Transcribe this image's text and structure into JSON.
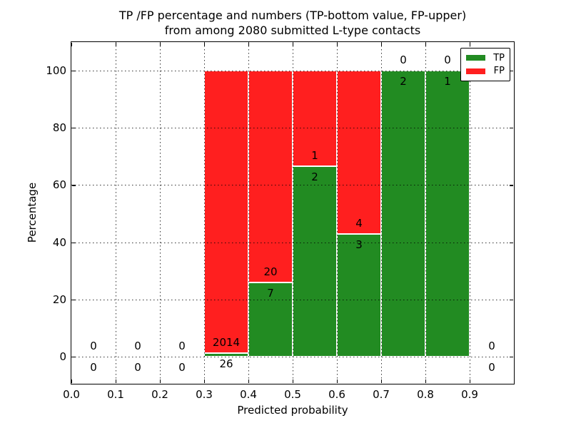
{
  "title": {
    "line1": "TP /FP percentage and numbers (TP-bottom value, FP-upper)",
    "line2": "from among 2080 submitted L-type contacts"
  },
  "axes": {
    "xlabel": "Predicted probability",
    "ylabel": "Percentage",
    "x_tick_labels": [
      "0.0",
      "0.1",
      "0.2",
      "0.3",
      "0.4",
      "0.5",
      "0.6",
      "0.7",
      "0.8",
      "0.9"
    ],
    "y_tick_labels": [
      "0",
      "20",
      "40",
      "60",
      "80",
      "100"
    ]
  },
  "legend": {
    "items": [
      {
        "label": "TP",
        "color": "#228b22"
      },
      {
        "label": "FP",
        "color": "#ff1f1f"
      }
    ]
  },
  "chart_data": {
    "type": "bar",
    "stacked": true,
    "percent_stacked": true,
    "title": "TP /FP percentage and numbers (TP-bottom value, FP-upper) from among 2080 submitted L-type contacts",
    "xlabel": "Predicted probability",
    "ylabel": "Percentage",
    "total_contacts": 2080,
    "bin_width": 0.1,
    "bin_starts": [
      0.0,
      0.1,
      0.2,
      0.3,
      0.4,
      0.5,
      0.6,
      0.7,
      0.8,
      0.9
    ],
    "series": [
      {
        "name": "TP",
        "color": "#228b22",
        "counts": [
          0,
          0,
          0,
          26,
          7,
          2,
          3,
          2,
          1,
          0
        ]
      },
      {
        "name": "FP",
        "color": "#ff1f1f",
        "counts": [
          0,
          0,
          0,
          2014,
          20,
          1,
          4,
          0,
          0,
          0
        ]
      }
    ],
    "tp_percent": [
      0,
      0,
      0,
      1.27,
      25.93,
      66.67,
      42.86,
      100,
      100,
      0
    ],
    "xlim": [
      0.0,
      1.0
    ],
    "ylim": [
      -9.5,
      110
    ],
    "grid": true,
    "grid_style": "dotted",
    "legend_position": "upper right"
  }
}
